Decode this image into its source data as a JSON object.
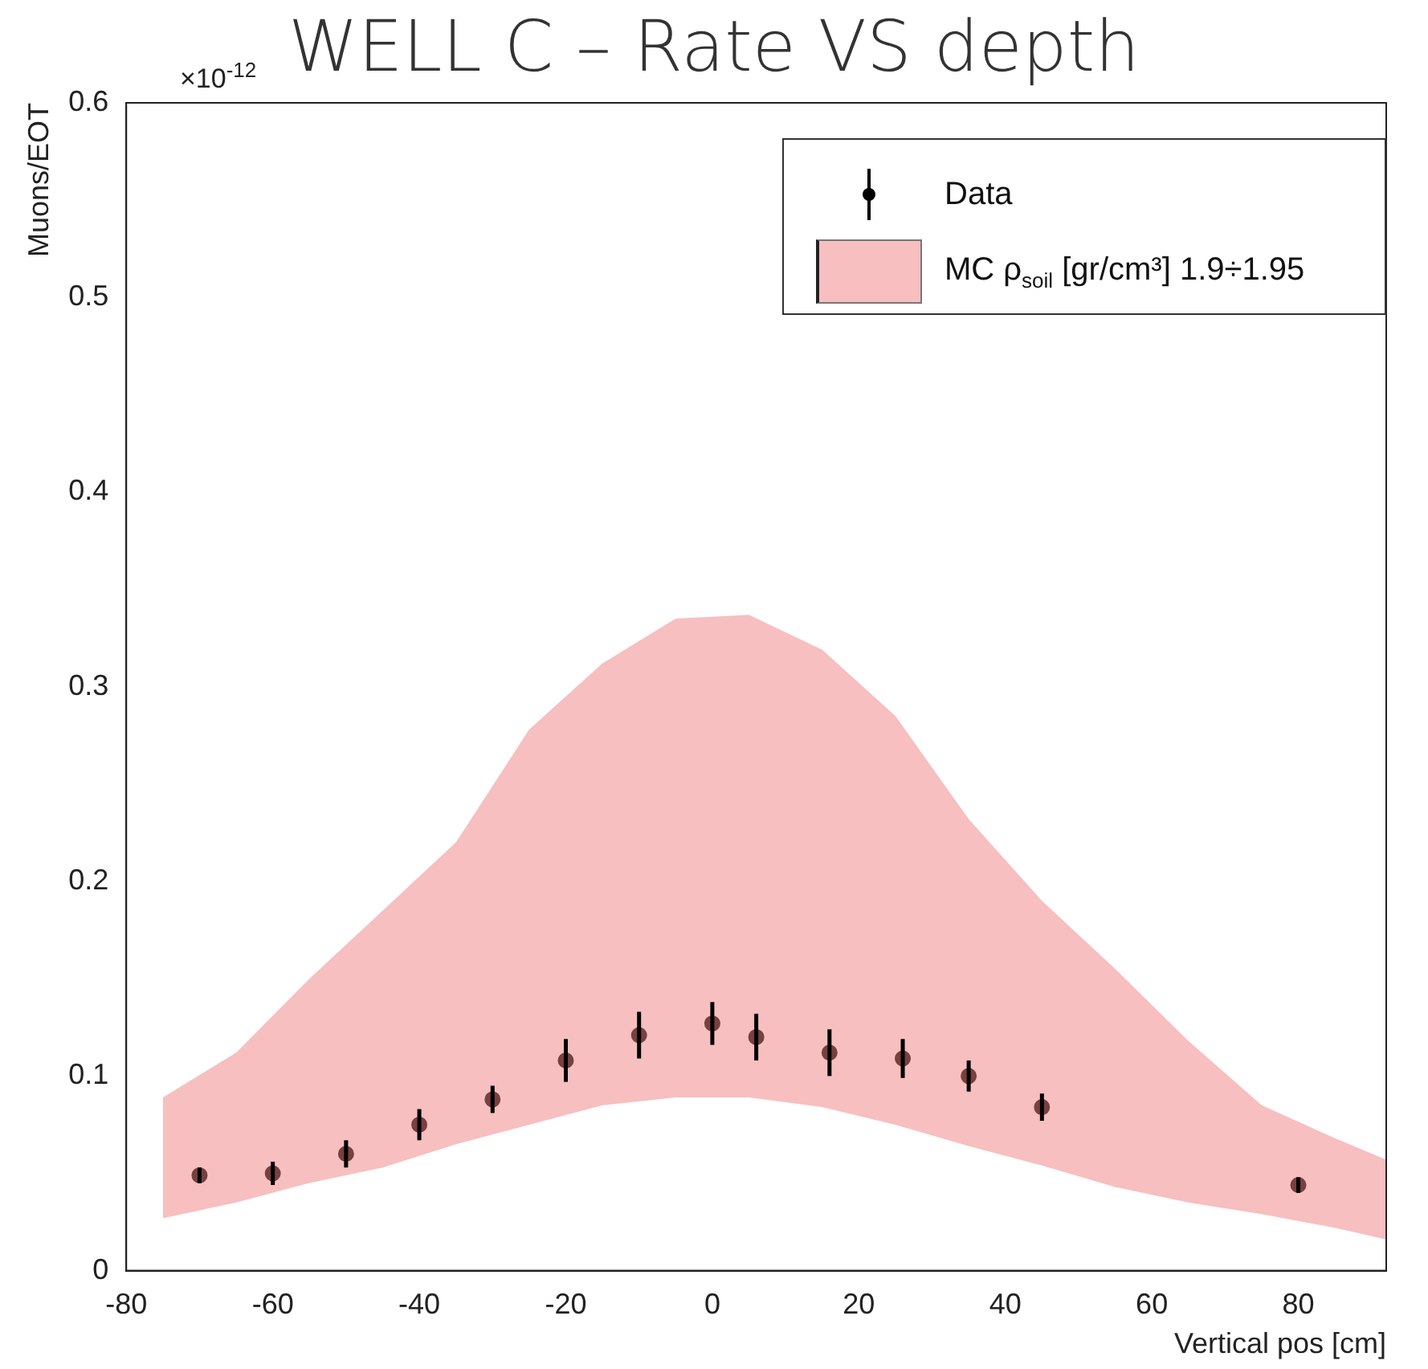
{
  "chart_data": {
    "type": "scatter",
    "title": "WELL C – Rate VS depth",
    "xlabel": "Vertical pos [cm]",
    "ylabel": "Muons/EOT",
    "annotations": [
      "×10$^{-12}$"
    ],
    "xlim": [
      -80,
      92
    ],
    "xticks": [
      -80,
      -60,
      -40,
      -20,
      0,
      20,
      40,
      60,
      80
    ],
    "ylim": [
      0,
      0.6
    ],
    "yticks": [
      0,
      0.1,
      0.2,
      0.3,
      0.4,
      0.5,
      0.6
    ],
    "grid": false,
    "legend": "top right",
    "marker": "circle",
    "series": [
      {
        "name": "MC ρ$_{soil}$ [gr/cm³] 1.9÷1.95",
        "type": "area",
        "color": "#f08080",
        "x": [
          -75,
          -65,
          -55,
          -45,
          -35,
          -25,
          -15,
          -5,
          5,
          15,
          25,
          35,
          45,
          55,
          65,
          75,
          85,
          92
        ],
        "values": [
          null,
          null,
          null,
          null,
          null,
          null,
          null,
          null,
          null,
          null,
          null,
          null,
          null,
          null,
          null,
          null,
          null,
          null
        ],
        "lower": [
          0.027,
          0.035,
          0.045,
          0.053,
          0.065,
          0.075,
          0.085,
          0.089,
          0.089,
          0.084,
          0.075,
          0.064,
          0.054,
          0.043,
          0.035,
          0.029,
          0.022,
          0.016
        ],
        "upper": [
          0.089,
          0.112,
          0.15,
          0.185,
          0.22,
          0.278,
          0.312,
          0.335,
          0.337,
          0.319,
          0.285,
          0.232,
          0.19,
          0.155,
          0.118,
          0.085,
          0.068,
          0.057
        ]
      },
      {
        "name": "Data",
        "color": "#000000",
        "x": [
          -70,
          -60,
          -50,
          -40,
          -30,
          -20,
          -10,
          0,
          6,
          16,
          26,
          35,
          45,
          80
        ],
        "values": [
          0.049,
          0.05,
          0.06,
          0.075,
          0.088,
          0.108,
          0.121,
          0.127,
          0.12,
          0.112,
          0.109,
          0.1,
          0.084,
          0.044
        ],
        "errors": [
          0.004,
          0.006,
          0.007,
          0.008,
          0.007,
          0.011,
          0.012,
          0.011,
          0.012,
          0.012,
          0.01,
          0.008,
          0.007,
          0.004
        ]
      }
    ]
  }
}
